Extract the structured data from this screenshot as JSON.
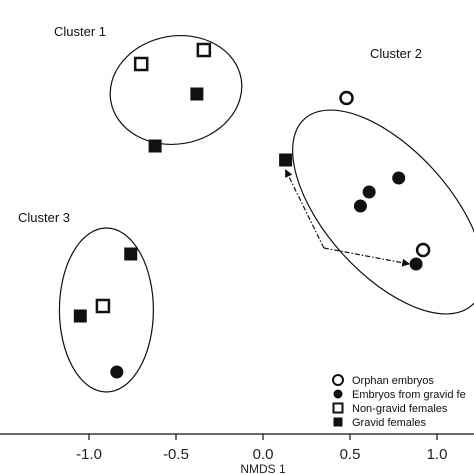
{
  "chart_data": {
    "type": "scatter",
    "xlabel": "NMDS 1",
    "ylabel": "",
    "xlim": [
      -1.2,
      1.05
    ],
    "ylim": [
      -1.0,
      1.0
    ],
    "x_ticks": [
      -1.0,
      -0.5,
      0.0,
      0.5,
      1.0
    ],
    "x_tick_labels": [
      "-1.0",
      "-0.5",
      "0.0",
      "0.5",
      "1.0"
    ],
    "grid": false,
    "legend_position": "bottom-right",
    "series": [
      {
        "name": "Orphan embryos",
        "marker": "open-circle",
        "points": [
          {
            "x": 0.48,
            "y": 0.74
          },
          {
            "x": 0.92,
            "y": -0.02
          }
        ]
      },
      {
        "name": "Embryos from gravid fe",
        "marker": "filled-circle",
        "points": [
          {
            "x": 0.61,
            "y": 0.27
          },
          {
            "x": 0.56,
            "y": 0.2
          },
          {
            "x": 0.78,
            "y": 0.34
          },
          {
            "x": 0.88,
            "y": -0.09
          },
          {
            "x": -0.84,
            "y": -0.63
          }
        ]
      },
      {
        "name": "Non-gravid females",
        "marker": "open-square",
        "points": [
          {
            "x": -0.7,
            "y": 0.91
          },
          {
            "x": -0.34,
            "y": 0.98
          },
          {
            "x": -0.92,
            "y": -0.3
          }
        ]
      },
      {
        "name": "Gravid females",
        "marker": "filled-square",
        "points": [
          {
            "x": -0.38,
            "y": 0.76
          },
          {
            "x": -0.62,
            "y": 0.5
          },
          {
            "x": 0.13,
            "y": 0.43
          },
          {
            "x": -0.76,
            "y": -0.04
          },
          {
            "x": -1.05,
            "y": -0.35
          }
        ]
      }
    ],
    "clusters": [
      {
        "label": "Cluster 1",
        "cx": -0.5,
        "cy": 0.78,
        "rx": 0.38,
        "ry": 0.27,
        "rotation": -10
      },
      {
        "label": "Cluster 2",
        "cx": 0.72,
        "cy": 0.17,
        "rx": 0.72,
        "ry": 0.31,
        "rotation": 48
      },
      {
        "label": "Cluster 3",
        "cx": -0.9,
        "cy": -0.32,
        "rx": 0.27,
        "ry": 0.41,
        "rotation": 0
      }
    ],
    "arrows": [
      {
        "from": {
          "x": 0.35,
          "y": -0.01
        },
        "to": {
          "x": 0.13,
          "y": 0.38
        }
      },
      {
        "from": {
          "x": 0.35,
          "y": -0.01
        },
        "to": {
          "x": 0.84,
          "y": -0.09
        }
      }
    ]
  }
}
